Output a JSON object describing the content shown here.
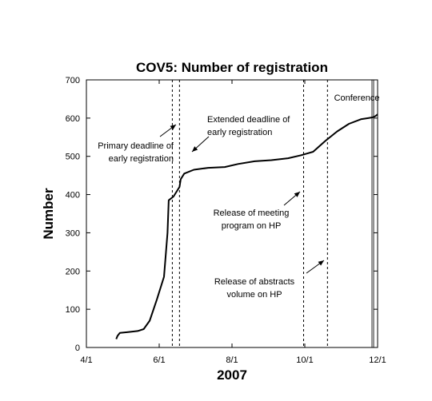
{
  "chart_data": {
    "type": "line",
    "title": "COV5: Number of registration",
    "xlabel": "2007",
    "ylabel": "Number",
    "ylim": [
      0,
      700
    ],
    "y_ticks": [
      0,
      100,
      200,
      300,
      400,
      500,
      600,
      700
    ],
    "x_range": [
      "2007-04-01",
      "2007-12-01"
    ],
    "x_ticks": [
      {
        "date": "2007-04-01",
        "label": "4/1"
      },
      {
        "date": "2007-06-01",
        "label": "6/1"
      },
      {
        "date": "2007-08-01",
        "label": "8/1"
      },
      {
        "date": "2007-10-01",
        "label": "10/1"
      },
      {
        "date": "2007-12-01",
        "label": "12/1"
      }
    ],
    "grid": false,
    "series": [
      {
        "points": [
          {
            "x": "2007-04-26",
            "y": 22
          },
          {
            "x": "2007-04-27",
            "y": 30
          },
          {
            "x": "2007-04-29",
            "y": 38
          },
          {
            "x": "2007-05-05",
            "y": 40
          },
          {
            "x": "2007-05-14",
            "y": 43
          },
          {
            "x": "2007-05-19",
            "y": 48
          },
          {
            "x": "2007-05-24",
            "y": 70
          },
          {
            "x": "2007-05-30",
            "y": 125
          },
          {
            "x": "2007-06-05",
            "y": 185
          },
          {
            "x": "2007-06-08",
            "y": 300
          },
          {
            "x": "2007-06-09",
            "y": 385
          },
          {
            "x": "2007-06-13",
            "y": 395
          },
          {
            "x": "2007-06-17",
            "y": 415
          },
          {
            "x": "2007-06-18",
            "y": 420
          },
          {
            "x": "2007-06-19",
            "y": 440
          },
          {
            "x": "2007-06-22",
            "y": 455
          },
          {
            "x": "2007-06-30",
            "y": 465
          },
          {
            "x": "2007-07-12",
            "y": 470
          },
          {
            "x": "2007-07-26",
            "y": 472
          },
          {
            "x": "2007-08-06",
            "y": 480
          },
          {
            "x": "2007-08-20",
            "y": 487
          },
          {
            "x": "2007-09-03",
            "y": 490
          },
          {
            "x": "2007-09-17",
            "y": 495
          },
          {
            "x": "2007-09-28",
            "y": 503
          },
          {
            "x": "2007-10-08",
            "y": 512
          },
          {
            "x": "2007-10-18",
            "y": 540
          },
          {
            "x": "2007-10-28",
            "y": 565
          },
          {
            "x": "2007-11-07",
            "y": 585
          },
          {
            "x": "2007-11-17",
            "y": 597
          },
          {
            "x": "2007-11-23",
            "y": 600
          },
          {
            "x": "2007-11-27",
            "y": 602
          },
          {
            "x": "2007-11-29",
            "y": 605
          },
          {
            "x": "2007-12-01",
            "y": 610
          }
        ]
      }
    ],
    "events": [
      {
        "date": "2007-06-12",
        "label": "Primary deadline of\nearly registration"
      },
      {
        "date": "2007-06-18",
        "label": "Extended deadline of\nearly registration"
      },
      {
        "date": "2007-09-30",
        "label": "Release of meeting\nprogram on HP"
      },
      {
        "date": "2007-10-20",
        "label": "Release of abstracts\nvolume on HP"
      }
    ],
    "conference": {
      "start": "2007-11-26",
      "end": "2007-11-28",
      "label": "Conference"
    }
  },
  "colors": {
    "line": "#000000",
    "conference_band": "#bbbbbb"
  }
}
